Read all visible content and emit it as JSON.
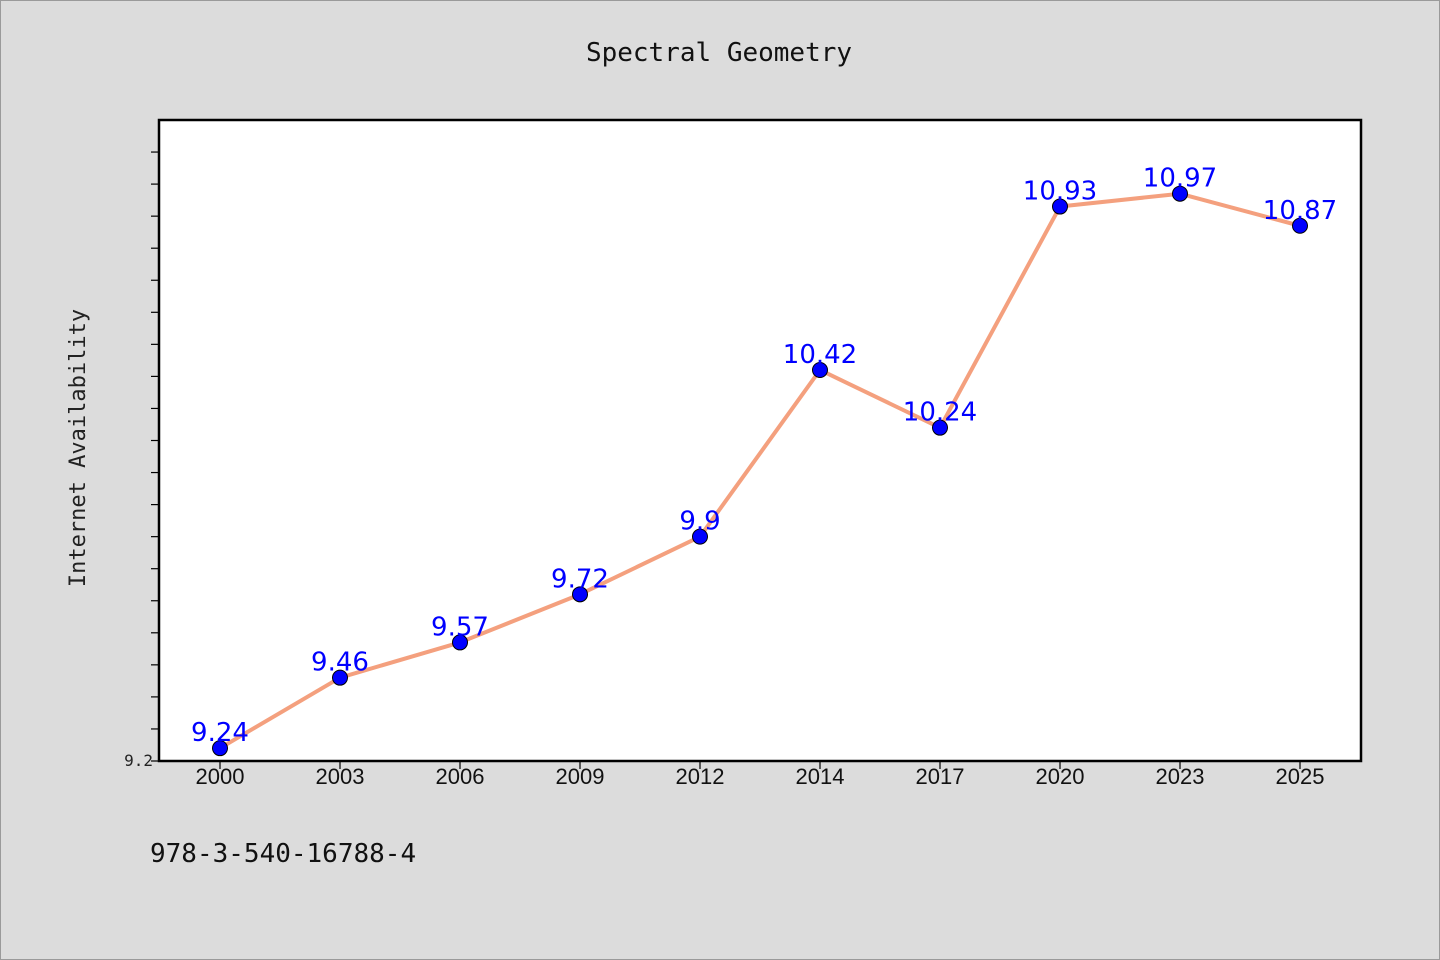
{
  "chart_data": {
    "type": "line",
    "title": "Spectral Geometry",
    "xlabel": "",
    "ylabel": "Internet Availability",
    "categories": [
      "2000",
      "2003",
      "2006",
      "2009",
      "2012",
      "2014",
      "2017",
      "2020",
      "2023",
      "2025"
    ],
    "series": [
      {
        "values": [
          9.24,
          9.46,
          9.57,
          9.72,
          9.9,
          10.42,
          10.24,
          10.93,
          10.97,
          10.87
        ],
        "data_labels": [
          "9.24",
          "9.46",
          "9.57",
          "9.72",
          "9.9",
          "10.42",
          "10.24",
          "10.93",
          "10.97",
          "10.87"
        ],
        "line_color": "#f4a07e",
        "marker_color": "#0000ff"
      }
    ],
    "ylim": [
      9.2,
      11.2
    ],
    "ytick_labels": [
      "9.2"
    ],
    "grid": false,
    "legend": "none"
  },
  "footer": {
    "isbn": "978-3-540-16788-4"
  },
  "colors": {
    "background": "#dcdcdc",
    "plot_background": "#ffffff",
    "line": "#f4a07e",
    "marker": "#0000ff",
    "data_label": "#0000ff"
  }
}
